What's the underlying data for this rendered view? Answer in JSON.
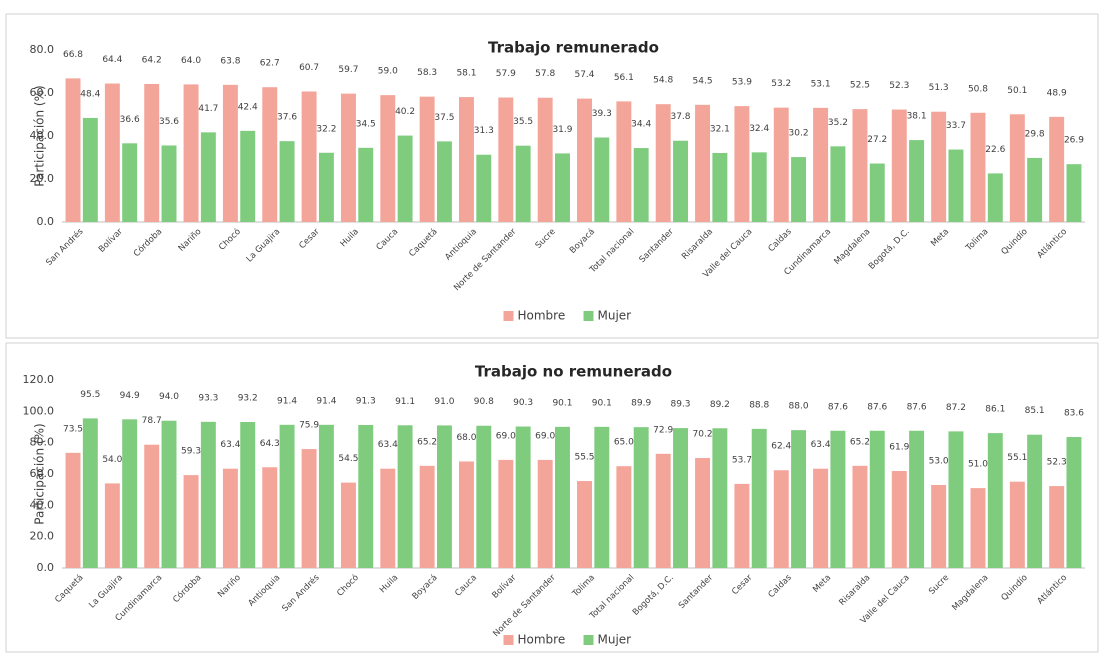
{
  "chart_data": [
    {
      "type": "bar",
      "title": "Trabajo remunerado",
      "ylabel": "Participación (%)",
      "categories": [
        "San Andrés",
        "Bolívar",
        "Córdoba",
        "Nariño",
        "Chocó",
        "La Guajira",
        "Cesar",
        "Huila",
        "Cauca",
        "Caquetá",
        "Antioquia",
        "Norte de Santander",
        "Sucre",
        "Boyacá",
        "Total nacional",
        "Santander",
        "Risaralda",
        "Valle del Cauca",
        "Caldas",
        "Cundinamarca",
        "Magdalena",
        "Bogotá, D.C.",
        "Meta",
        "Tolima",
        "Quindío",
        "Atlántico"
      ],
      "series": [
        {
          "name": "Hombre",
          "color": "#f4a59a",
          "values": [
            66.8,
            64.4,
            64.2,
            64.0,
            63.8,
            62.7,
            60.7,
            59.7,
            59.0,
            58.3,
            58.1,
            57.9,
            57.8,
            57.4,
            56.1,
            54.8,
            54.5,
            53.9,
            53.2,
            53.1,
            52.5,
            52.3,
            51.3,
            50.8,
            50.1,
            48.9
          ],
          "value_labels": [
            "66.8",
            "64.4",
            "64.2",
            "64.0",
            "63.8",
            "62.7",
            "60.7",
            "59.7",
            "59.0",
            "58.3",
            "58.1",
            "57.9",
            "57.8",
            "57.4",
            "56.1",
            "54.8",
            "54.5",
            "53.9",
            "53.2",
            "53.1",
            "52.5",
            "52.3",
            "51.3",
            "50.8",
            "50.1",
            "48.9"
          ]
        },
        {
          "name": "Mujer",
          "color": "#7fcc7f",
          "values": [
            48.4,
            36.6,
            35.6,
            41.7,
            42.4,
            37.6,
            32.2,
            34.5,
            40.2,
            37.5,
            31.3,
            35.5,
            31.9,
            39.3,
            34.4,
            37.8,
            32.1,
            32.4,
            30.2,
            35.2,
            27.2,
            38.1,
            33.7,
            22.6,
            29.8,
            26.9
          ],
          "value_labels": [
            "48.4",
            "36.6",
            "35.6",
            "41.7",
            "42.4",
            "37.6",
            "32.2",
            "34.5",
            "40.2",
            "37.5",
            "31.3",
            "35.5",
            "31.9",
            "39.3",
            "34.4",
            "37.8",
            "32.1",
            "32.4",
            "30.2",
            "35.2",
            "27.2",
            "38.1",
            "33.7",
            "22.6",
            "29.8",
            "26.9"
          ]
        }
      ],
      "ylim": [
        0,
        80
      ],
      "yticks": [
        {
          "value": 0,
          "label": "0.0"
        },
        {
          "value": 20,
          "label": "20.0"
        },
        {
          "value": 40,
          "label": "40.0"
        },
        {
          "value": 60,
          "label": "60.0"
        },
        {
          "value": 80,
          "label": "80.0"
        }
      ],
      "grid": false,
      "legend": "bottom"
    },
    {
      "type": "bar",
      "title": "Trabajo no remunerado",
      "ylabel": "Participación (%)",
      "categories": [
        "Caquetá",
        "La Guajira",
        "Cundinamarca",
        "Córdoba",
        "Nariño",
        "Antioquia",
        "San Andrés",
        "Chocó",
        "Huila",
        "Boyacá",
        "Cauca",
        "Bolívar",
        "Norte de Santander",
        "Tolima",
        "Total nacional",
        "Bogotá, D.C.",
        "Santander",
        "Cesar",
        "Caldas",
        "Meta",
        "Risaralda",
        "Valle del Cauca",
        "Sucre",
        "Magdalena",
        "Quindío",
        "Atlántico"
      ],
      "series": [
        {
          "name": "Hombre",
          "color": "#f4a59a",
          "values": [
            73.5,
            54.0,
            78.7,
            59.3,
            63.4,
            64.3,
            75.9,
            54.5,
            63.4,
            65.2,
            68.0,
            69.0,
            69.0,
            55.5,
            65.0,
            72.9,
            70.2,
            53.7,
            62.4,
            63.4,
            65.2,
            61.9,
            53.0,
            51.0,
            55.1,
            52.3
          ],
          "value_labels": [
            "73.5",
            "54.0",
            "78.7",
            "59.3",
            "63.4",
            "64.3",
            "75.9",
            "54.5",
            "63.4",
            "65.2",
            "68.0",
            "69.0",
            "69.0",
            "55.5",
            "65.0",
            "72.9",
            "70.2",
            "53.7",
            "62.4",
            "63.4",
            "65.2",
            "61.9",
            "53.0",
            "51.0",
            "55.1",
            "52.3"
          ]
        },
        {
          "name": "Mujer",
          "color": "#7fcc7f",
          "values": [
            95.5,
            94.9,
            94.0,
            93.3,
            93.2,
            91.4,
            91.4,
            91.3,
            91.1,
            91.0,
            90.8,
            90.3,
            90.1,
            90.1,
            89.9,
            89.3,
            89.2,
            88.8,
            88.0,
            87.6,
            87.6,
            87.6,
            87.2,
            86.1,
            85.1,
            83.6
          ],
          "value_labels": [
            "95.5",
            "94.9",
            "94.0",
            "93.3",
            "93.2",
            "91.4",
            "91.4",
            "91.3",
            "91.1",
            "91.0",
            "90.8",
            "90.3",
            "90.1",
            "90.1",
            "89.9",
            "89.3",
            "89.2",
            "88.8",
            "88.0",
            "87.6",
            "87.6",
            "87.6",
            "87.2",
            "86.1",
            "85.1",
            "83.6"
          ]
        }
      ],
      "ylim": [
        0,
        120
      ],
      "yticks": [
        {
          "value": 0,
          "label": "0.0"
        },
        {
          "value": 20,
          "label": "20.0"
        },
        {
          "value": 40,
          "label": "40.0"
        },
        {
          "value": 60,
          "label": "60.0"
        },
        {
          "value": 80,
          "label": "80.0"
        },
        {
          "value": 100,
          "label": "100.0"
        },
        {
          "value": 120,
          "label": "120.0"
        }
      ],
      "grid": false,
      "legend": "bottom"
    }
  ]
}
